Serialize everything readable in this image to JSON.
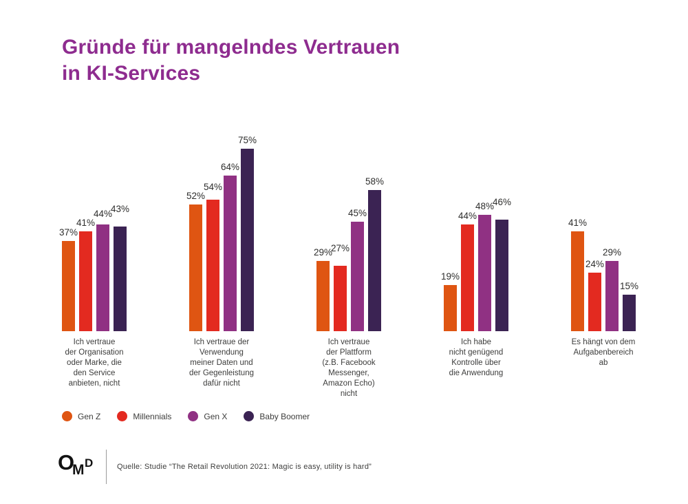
{
  "title": "Gründe für mangelndes Vertrauen\nin KI-Services",
  "chart_data": {
    "type": "bar",
    "title": "Gründe für mangelndes Vertrauen in KI-Services",
    "categories": [
      "Ich vertraue\nder Organisation\noder Marke, die\nden Service\nanbieten, nicht",
      "Ich vertraue der\nVerwendung\nmeiner Daten und\nder Gegenleistung\ndafür nicht",
      "Ich vertraue\nder Plattform\n(z.B. Facebook\nMessenger,\nAmazon Echo)\nnicht",
      "Ich habe\nnicht genügend\nKontrolle über\ndie Anwendung",
      "Es hängt von dem\nAufgabenbereich\nab"
    ],
    "series": [
      {
        "name": "Gen Z",
        "color": "#df5512",
        "values": [
          37,
          52,
          29,
          19,
          41
        ]
      },
      {
        "name": "Millennials",
        "color": "#e32a20",
        "values": [
          41,
          54,
          27,
          44,
          24
        ]
      },
      {
        "name": "Gen X",
        "color": "#903183",
        "values": [
          44,
          64,
          45,
          48,
          29
        ]
      },
      {
        "name": "Baby Boomer",
        "color": "#3b2353",
        "values": [
          43,
          75,
          58,
          46,
          15
        ]
      }
    ],
    "value_suffix": "%",
    "value_labels": true,
    "ylim": [
      0,
      80
    ],
    "grid": false,
    "legend_position": "bottom-left"
  },
  "footer": {
    "logo": "OMD",
    "source": "Quelle: Studie “The Retail Revolution 2021: Magic is easy, utility is hard”"
  }
}
